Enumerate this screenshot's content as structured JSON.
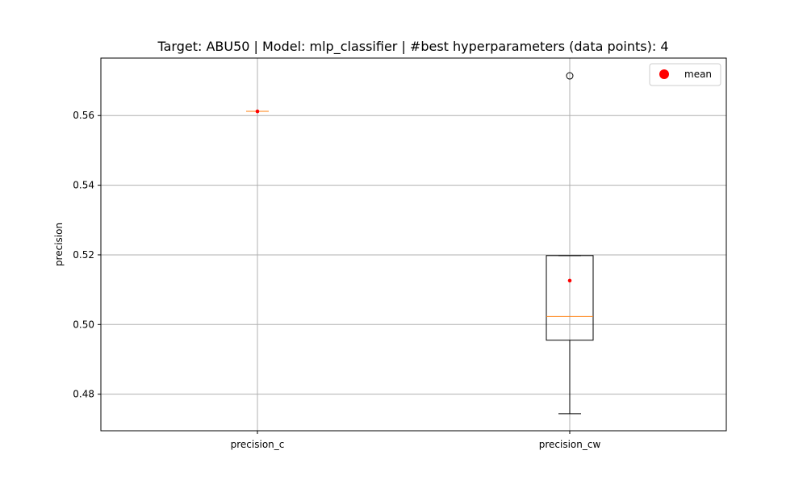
{
  "chart_data": {
    "type": "box",
    "title": "Target: ABU50 | Model: mlp_classifier | #best hyperparameters (data points): 4",
    "xlabel": "",
    "ylabel": "precision",
    "categories": [
      "precision_c",
      "precision_cw"
    ],
    "ylim": [
      0.4695,
      0.5765
    ],
    "yticks": [
      0.48,
      0.5,
      0.52,
      0.54,
      0.56
    ],
    "ytick_labels": [
      "0.48",
      "0.50",
      "0.52",
      "0.54",
      "0.56"
    ],
    "grid": true,
    "legend": {
      "placement": "top-right",
      "entries": [
        "mean"
      ]
    },
    "boxes": [
      {
        "category": "precision_c",
        "value": 0.5612,
        "mean": 0.5612
      },
      {
        "category": "precision_cw",
        "whisker_low": 0.4744,
        "q1": 0.4955,
        "median": 0.5023,
        "q3": 0.5198,
        "whisker_high": 0.5198,
        "outliers": [
          0.5714
        ],
        "mean": 0.5126
      }
    ],
    "colors": {
      "box": "#000000",
      "median": "#ff7f0e",
      "mean": "#ff0000",
      "grid": "#b0b0b0",
      "outlier": "#000000"
    }
  }
}
